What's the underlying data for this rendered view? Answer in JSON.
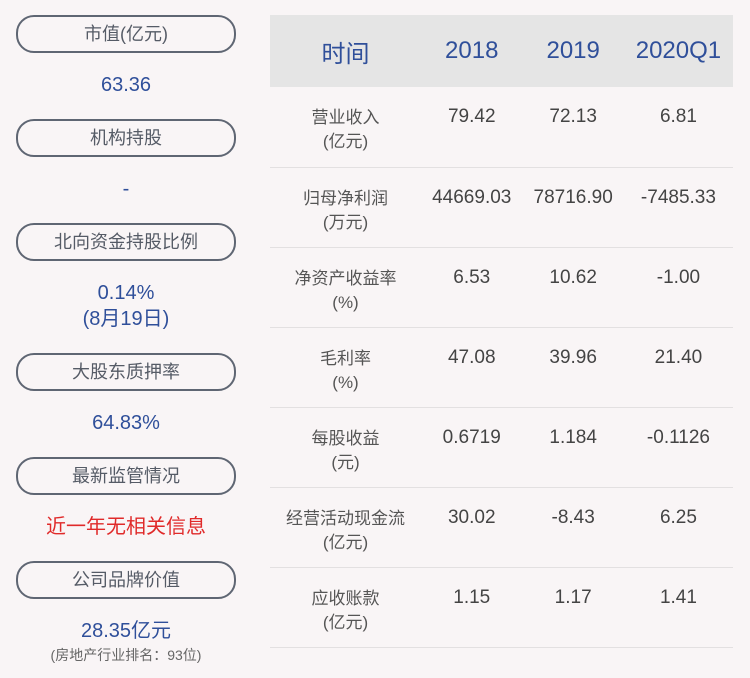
{
  "left": [
    {
      "label": "市值(亿元)",
      "value": "63.36"
    },
    {
      "label": "机构持股",
      "value": "-"
    },
    {
      "label": "北向资金持股比例",
      "value": "0.14%",
      "value2": "(8月19日)"
    },
    {
      "label": "大股东质押率",
      "value": "64.83%"
    },
    {
      "label": "最新监管情况",
      "value": "近一年无相关信息"
    },
    {
      "label": "公司品牌价值",
      "value": "28.35亿元",
      "note": "(房地产行业排名：93位)"
    }
  ],
  "table": {
    "headers": [
      "时间",
      "2018",
      "2019",
      "2020Q1"
    ],
    "rows": [
      {
        "l1": "营业收入",
        "l2": "(亿元)",
        "v": [
          "79.42",
          "72.13",
          "6.81"
        ]
      },
      {
        "l1": "归母净利润",
        "l2": "(万元)",
        "v": [
          "44669.03",
          "78716.90",
          "-7485.33"
        ]
      },
      {
        "l1": "净资产收益率",
        "l2": "(%)",
        "v": [
          "6.53",
          "10.62",
          "-1.00"
        ]
      },
      {
        "l1": "毛利率",
        "l2": "(%)",
        "v": [
          "47.08",
          "39.96",
          "21.40"
        ]
      },
      {
        "l1": "每股收益",
        "l2": "(元)",
        "v": [
          "0.6719",
          "1.184",
          "-0.1126"
        ]
      },
      {
        "l1": "经营活动现金流",
        "l2": "(亿元)",
        "v": [
          "30.02",
          "-8.43",
          "6.25"
        ]
      },
      {
        "l1": "应收账款",
        "l2": "(亿元)",
        "v": [
          "1.15",
          "1.17",
          "1.41"
        ]
      }
    ]
  },
  "colors": {
    "accent": "#2f4f9a",
    "alert": "#e02a2a",
    "header_bg": "#e5e5e5"
  }
}
